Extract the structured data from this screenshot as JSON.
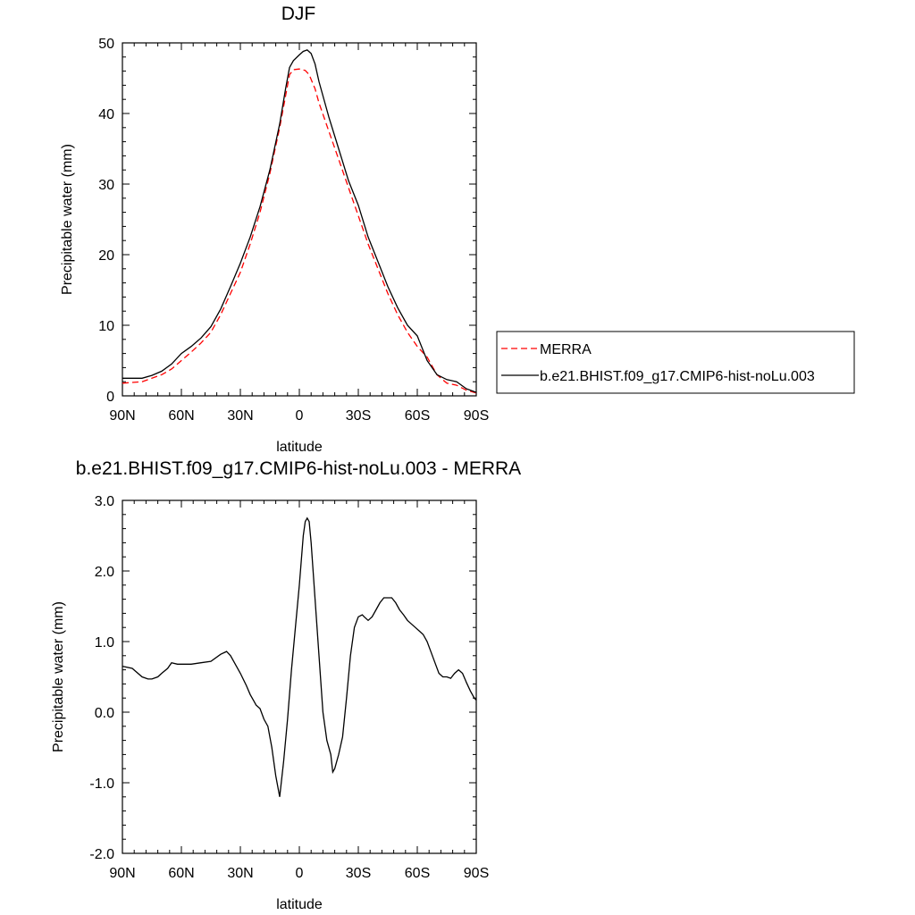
{
  "chart_data": [
    {
      "type": "line",
      "title": "DJF",
      "xlabel": "latitude",
      "ylabel": "Precipitable water (mm)",
      "xlim": [
        -90,
        90
      ],
      "ylim": [
        0,
        50
      ],
      "xticks": [
        {
          "value": -90,
          "label": "90N"
        },
        {
          "value": -60,
          "label": "60N"
        },
        {
          "value": -30,
          "label": "30N"
        },
        {
          "value": 0,
          "label": "0"
        },
        {
          "value": 30,
          "label": "30S"
        },
        {
          "value": 60,
          "label": "60S"
        },
        {
          "value": 90,
          "label": "90S"
        }
      ],
      "yticks": [
        {
          "value": 0,
          "label": "0"
        },
        {
          "value": 10,
          "label": "10"
        },
        {
          "value": 20,
          "label": "20"
        },
        {
          "value": 30,
          "label": "30"
        },
        {
          "value": 40,
          "label": "40"
        },
        {
          "value": 50,
          "label": "50"
        }
      ],
      "grid": false,
      "legend_position": "right",
      "series": [
        {
          "name": "MERRA",
          "color": "#ff0000",
          "dash": true,
          "x": [
            -90,
            -85,
            -80,
            -75,
            -70,
            -65,
            -60,
            -55,
            -50,
            -45,
            -40,
            -35,
            -30,
            -25,
            -20,
            -15,
            -10,
            -7,
            -5,
            -3,
            0,
            3,
            5,
            8,
            10,
            15,
            20,
            25,
            30,
            35,
            40,
            45,
            50,
            55,
            60,
            65,
            70,
            75,
            80,
            85,
            90
          ],
          "y": [
            1.8,
            1.9,
            2.0,
            2.5,
            3.0,
            3.8,
            5.0,
            6.2,
            7.5,
            9.0,
            11.5,
            14.5,
            17.5,
            21.5,
            26.0,
            31.5,
            38.0,
            42.5,
            45.5,
            46.2,
            46.3,
            46.1,
            45.5,
            43.5,
            41.5,
            37.5,
            33.5,
            29.5,
            25.5,
            21.5,
            18.0,
            14.5,
            11.5,
            9.0,
            7.0,
            5.5,
            3.0,
            1.8,
            1.5,
            0.8,
            0.4
          ]
        },
        {
          "name": "b.e21.BHIST.f09_g17.CMIP6-hist-noLu.003",
          "color": "#000000",
          "dash": false,
          "x": [
            -90,
            -85,
            -80,
            -75,
            -70,
            -65,
            -60,
            -55,
            -50,
            -45,
            -40,
            -35,
            -30,
            -25,
            -20,
            -15,
            -10,
            -7,
            -5,
            -3,
            0,
            2,
            4,
            6,
            8,
            10,
            15,
            20,
            25,
            30,
            35,
            40,
            45,
            50,
            55,
            60,
            65,
            70,
            75,
            80,
            85,
            90
          ],
          "y": [
            2.5,
            2.5,
            2.5,
            2.9,
            3.5,
            4.5,
            6.0,
            7.0,
            8.2,
            9.8,
            12.3,
            15.5,
            18.8,
            22.5,
            26.8,
            32.0,
            38.5,
            43.5,
            46.5,
            47.5,
            48.3,
            48.8,
            49.0,
            48.5,
            47.0,
            44.5,
            39.5,
            35.0,
            30.5,
            27.0,
            22.5,
            19.0,
            15.5,
            12.5,
            10.0,
            8.5,
            5.0,
            3.0,
            2.3,
            2.0,
            1.0,
            0.5
          ]
        }
      ]
    },
    {
      "type": "line",
      "title": "b.e21.BHIST.f09_g17.CMIP6-hist-noLu.003 - MERRA",
      "xlabel": "latitude",
      "ylabel": "Precipitable water (mm)",
      "xlim": [
        -90,
        90
      ],
      "ylim": [
        -2,
        3
      ],
      "xticks": [
        {
          "value": -90,
          "label": "90N"
        },
        {
          "value": -60,
          "label": "60N"
        },
        {
          "value": -30,
          "label": "30N"
        },
        {
          "value": 0,
          "label": "0"
        },
        {
          "value": 30,
          "label": "30S"
        },
        {
          "value": 60,
          "label": "60S"
        },
        {
          "value": 90,
          "label": "90S"
        }
      ],
      "yticks": [
        {
          "value": -2,
          "label": "-2.0"
        },
        {
          "value": -1,
          "label": "-1.0"
        },
        {
          "value": 0,
          "label": "0.0"
        },
        {
          "value": 1,
          "label": "1.0"
        },
        {
          "value": 2,
          "label": "2.0"
        },
        {
          "value": 3,
          "label": "3.0"
        }
      ],
      "grid": false,
      "series": [
        {
          "color": "#000000",
          "dash": false,
          "x": [
            -90,
            -85,
            -80,
            -77,
            -75,
            -72,
            -70,
            -67,
            -65,
            -62,
            -60,
            -55,
            -50,
            -45,
            -40,
            -37,
            -35,
            -33,
            -30,
            -27,
            -25,
            -23,
            -22,
            -20,
            -18,
            -16,
            -14,
            -12,
            -10,
            -8,
            -6,
            -4,
            -2,
            0,
            2,
            3,
            4,
            5,
            6,
            7,
            8,
            10,
            12,
            14,
            16,
            17,
            18,
            20,
            22,
            24,
            26,
            28,
            30,
            32,
            33,
            35,
            37,
            39,
            41,
            43,
            45,
            47,
            49,
            51,
            53,
            55,
            57,
            59,
            61,
            63,
            65,
            67,
            69,
            71,
            73,
            75,
            77,
            79,
            81,
            83,
            85,
            87,
            89,
            90
          ],
          "y": [
            0.65,
            0.62,
            0.5,
            0.47,
            0.47,
            0.5,
            0.55,
            0.62,
            0.7,
            0.68,
            0.68,
            0.68,
            0.7,
            0.72,
            0.82,
            0.86,
            0.8,
            0.7,
            0.55,
            0.38,
            0.25,
            0.15,
            0.1,
            0.05,
            -0.1,
            -0.2,
            -0.5,
            -0.9,
            -1.2,
            -0.7,
            -0.1,
            0.6,
            1.2,
            1.8,
            2.5,
            2.7,
            2.75,
            2.7,
            2.4,
            2.0,
            1.6,
            0.8,
            0.0,
            -0.4,
            -0.6,
            -0.85,
            -0.8,
            -0.6,
            -0.35,
            0.2,
            0.8,
            1.2,
            1.35,
            1.38,
            1.35,
            1.3,
            1.35,
            1.45,
            1.55,
            1.62,
            1.62,
            1.62,
            1.55,
            1.45,
            1.38,
            1.3,
            1.25,
            1.2,
            1.15,
            1.1,
            1.0,
            0.85,
            0.7,
            0.55,
            0.5,
            0.5,
            0.48,
            0.55,
            0.6,
            0.55,
            0.42,
            0.3,
            0.2,
            0.17
          ]
        }
      ]
    }
  ]
}
